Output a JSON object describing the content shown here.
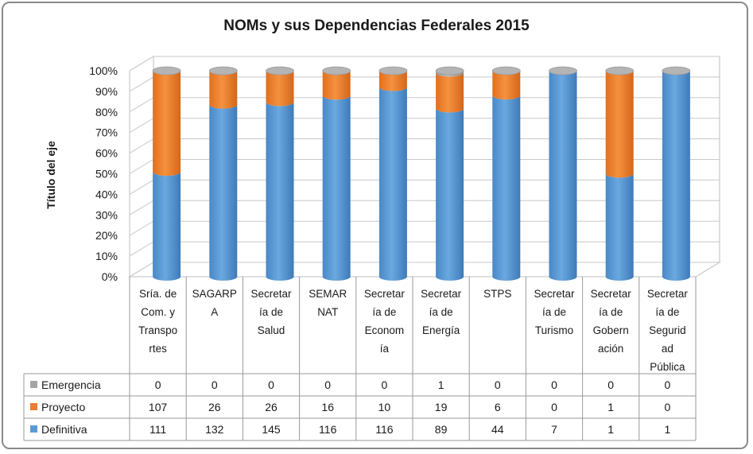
{
  "chart_data": {
    "type": "bar",
    "stacked": "percent",
    "title": "NOMs y sus Dependencias Federales 2015",
    "ylabel": "Título del eje",
    "y_ticks": [
      "0%",
      "10%",
      "20%",
      "30%",
      "40%",
      "50%",
      "60%",
      "70%",
      "80%",
      "90%",
      "100%"
    ],
    "ylim": [
      0,
      100
    ],
    "grid": true,
    "legend": "data-table",
    "categories": [
      [
        "Sría. de",
        "Com. y",
        "Transpo",
        "rtes"
      ],
      [
        "SAGARP",
        "A"
      ],
      [
        "Secretar",
        "ía de",
        "Salud"
      ],
      [
        "SEMAR",
        "NAT"
      ],
      [
        "Secretar",
        "ía de",
        "Econom",
        "ía"
      ],
      [
        "Secretar",
        "ía de",
        "Energía"
      ],
      [
        "STPS"
      ],
      [
        "Secretar",
        "ía de",
        "Turismo"
      ],
      [
        "Secretar",
        "ía de",
        "Gobern",
        "ación"
      ],
      [
        "Secretar",
        "ía de",
        "Segurid",
        "ad",
        "Pública"
      ]
    ],
    "series": [
      {
        "name": "Emergencia",
        "color": "#a5a5a5",
        "values": [
          0,
          0,
          0,
          0,
          0,
          1,
          0,
          0,
          0,
          0
        ]
      },
      {
        "name": "Proyecto",
        "color": "#ed7d31",
        "values": [
          107,
          26,
          26,
          16,
          10,
          19,
          6,
          0,
          1,
          0
        ]
      },
      {
        "name": "Definitiva",
        "color": "#5b9bd5",
        "values": [
          111,
          132,
          145,
          116,
          116,
          89,
          44,
          7,
          1,
          1
        ]
      }
    ]
  }
}
